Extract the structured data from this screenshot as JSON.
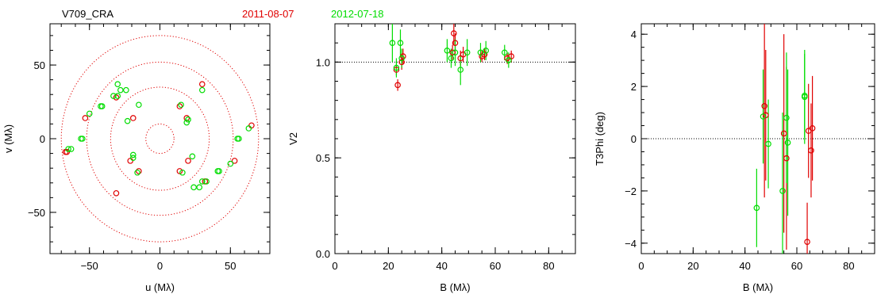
{
  "header": {
    "object_name": "V709_CRA",
    "dates": [
      {
        "label": "2011-08-07",
        "color": "#e00000"
      },
      {
        "label": "2012-07-18",
        "color": "#00dd00"
      }
    ]
  },
  "colors": {
    "red": "#e00000",
    "green": "#00dd00",
    "frame": "#000000"
  },
  "chart_data": [
    {
      "type": "scatter",
      "id": "uv",
      "xlabel": "u (Mλ)",
      "ylabel": "v (Mλ)",
      "xlim": [
        -78,
        78
      ],
      "ylim": [
        -78,
        78
      ],
      "xticks": [
        -50,
        0,
        50
      ],
      "yticks": [
        -50,
        0,
        50
      ],
      "circles": [
        10,
        35,
        52,
        70
      ],
      "series": [
        {
          "name": "2011-08-07",
          "color": "#e00000",
          "x": [
            -67,
            -53,
            -31,
            -21,
            -15,
            14,
            19,
            30,
            65,
            53,
            32,
            20,
            14,
            -19,
            -31,
            -66
          ],
          "y": [
            -9,
            14,
            28,
            -15,
            -22,
            22,
            14,
            37,
            9,
            -15,
            -29,
            -15,
            -22,
            14,
            -37,
            -9
          ]
        },
        {
          "name": "2012-07-18",
          "color": "#00dd00",
          "x": [
            -65,
            -55,
            -50,
            -42,
            -33,
            -28,
            -19,
            -16,
            15,
            19,
            30,
            56,
            63,
            41,
            30,
            24,
            23,
            16,
            55,
            50,
            42,
            33,
            28,
            20,
            -15,
            -24,
            -30,
            -56,
            -63,
            -41,
            -30,
            -19,
            -23
          ],
          "y": [
            -7,
            0,
            17,
            22,
            29,
            33,
            -13,
            -23,
            23,
            11,
            33,
            0,
            7,
            -22,
            -29,
            -33,
            -12,
            -23,
            0,
            -17,
            -22,
            -29,
            -33,
            13,
            23,
            33,
            37,
            0,
            -7,
            22,
            29,
            -11,
            12
          ]
        }
      ]
    },
    {
      "type": "scatter",
      "id": "v2",
      "xlabel": "B (Mλ)",
      "ylabel": "V2",
      "xlim": [
        0,
        90
      ],
      "ylim": [
        0,
        1.2
      ],
      "xticks": [
        0,
        20,
        40,
        60,
        80
      ],
      "yticks": [
        0.0,
        0.5,
        1.0
      ],
      "ytick_labels": [
        "0.0",
        "0.5",
        "1.0"
      ],
      "reference_line": 1.0,
      "series": [
        {
          "name": "2011-08-07",
          "color": "#e00000",
          "x": [
            23.5,
            25,
            44.5,
            44,
            45,
            47,
            48,
            55,
            56,
            64.5,
            66,
            23,
            25.5
          ],
          "y": [
            0.88,
            1.0,
            1.15,
            1.05,
            1.1,
            1.02,
            1.04,
            1.03,
            1.04,
            1.02,
            1.03,
            0.96,
            1.03
          ],
          "err": [
            0.03,
            0.04,
            0.06,
            0.04,
            0.05,
            0.04,
            0.04,
            0.03,
            0.03,
            0.03,
            0.03,
            0.03,
            0.04
          ]
        },
        {
          "name": "2012-07-18",
          "color": "#00dd00",
          "x": [
            21.5,
            23,
            24.5,
            25,
            42,
            43.5,
            45,
            47,
            49.5,
            54.5,
            56.5,
            63.5,
            65
          ],
          "y": [
            1.1,
            0.97,
            1.1,
            1.02,
            1.06,
            1.02,
            1.05,
            0.96,
            1.05,
            1.05,
            1.06,
            1.05,
            1.01
          ],
          "err": [
            0.1,
            0.05,
            0.07,
            0.05,
            0.06,
            0.05,
            0.07,
            0.08,
            0.07,
            0.05,
            0.05,
            0.04,
            0.04
          ]
        }
      ]
    },
    {
      "type": "scatter",
      "id": "t3phi",
      "xlabel": "B (Mλ)",
      "ylabel": "T3Phi (deg)",
      "xlim": [
        0,
        90
      ],
      "ylim": [
        -4.4,
        4.4
      ],
      "xticks": [
        0,
        20,
        40,
        60,
        80
      ],
      "yticks": [
        -4,
        -2,
        0,
        2,
        4
      ],
      "reference_line": 0,
      "series": [
        {
          "name": "2011-08-07",
          "color": "#e00000",
          "x": [
            47.5,
            48,
            55,
            56,
            64,
            64.5,
            66,
            65.5
          ],
          "y": [
            1.25,
            0.9,
            0.2,
            -0.75,
            -3.95,
            0.3,
            0.4,
            -0.45
          ],
          "err": [
            3.5,
            2.5,
            3.8,
            3.5,
            1.5,
            1.8,
            2.0,
            1.8
          ]
        },
        {
          "name": "2012-07-18",
          "color": "#00dd00",
          "x": [
            44.5,
            47,
            49,
            54.5,
            56,
            56.5,
            63,
            63
          ],
          "y": [
            -2.65,
            0.85,
            -0.2,
            -2.0,
            0.8,
            -0.15,
            1.6,
            1.65
          ],
          "err": [
            1.5,
            1.8,
            1.7,
            3.0,
            2.5,
            2.8,
            1.8,
            1.6
          ]
        }
      ]
    }
  ]
}
